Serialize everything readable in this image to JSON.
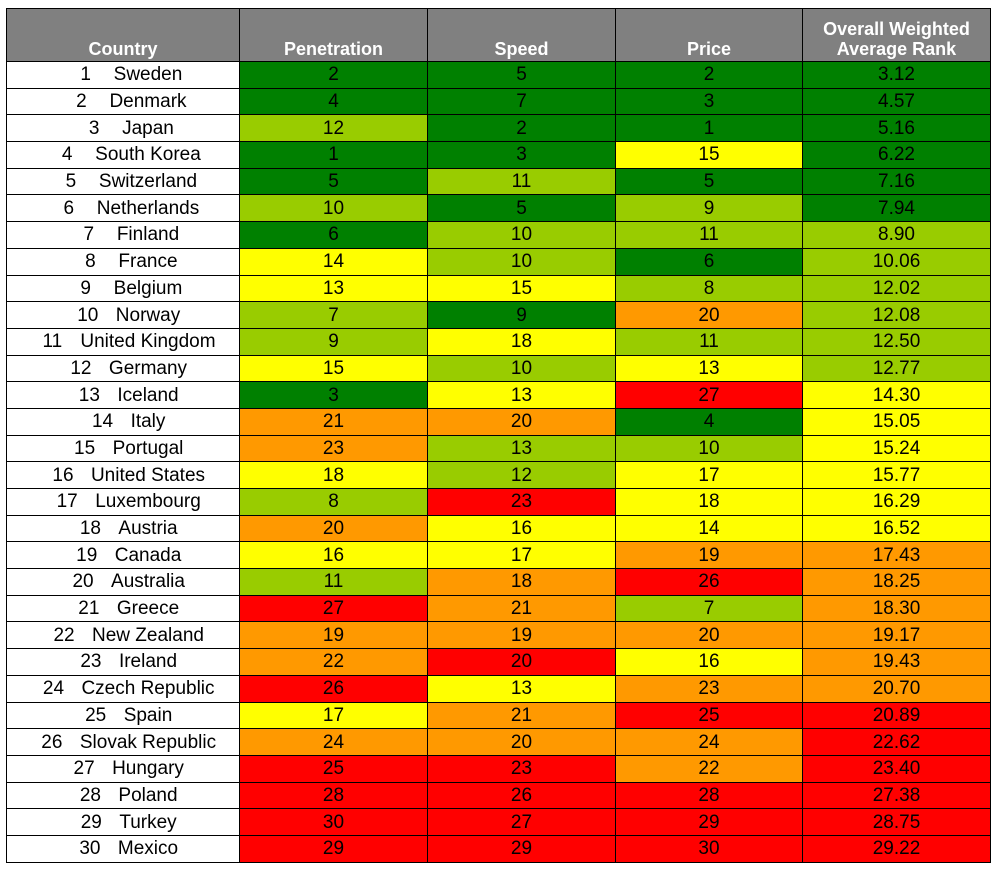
{
  "headers": {
    "country": "Country",
    "penetration": "Penetration",
    "speed": "Speed",
    "price": "Price",
    "overall_line1": "Overall Weighted",
    "overall_line2": "Average Rank"
  },
  "colors": {
    "dark_green": "#008000",
    "light_green": "#99cc00",
    "yellow": "#ffff00",
    "orange": "#ff9900",
    "red": "#ff0000",
    "header_bg": "#808080"
  },
  "rows": [
    {
      "rank": "1",
      "country": "Sweden",
      "penetration": "2",
      "speed": "5",
      "price": "2",
      "overall": "3.12",
      "colors": [
        "dg",
        "dg",
        "dg",
        "dg"
      ]
    },
    {
      "rank": "2",
      "country": "Denmark",
      "penetration": "4",
      "speed": "7",
      "price": "3",
      "overall": "4.57",
      "colors": [
        "dg",
        "dg",
        "dg",
        "dg"
      ]
    },
    {
      "rank": "3",
      "country": "Japan",
      "penetration": "12",
      "speed": "2",
      "price": "1",
      "overall": "5.16",
      "colors": [
        "lg",
        "dg",
        "dg",
        "dg"
      ]
    },
    {
      "rank": "4",
      "country": "South Korea",
      "penetration": "1",
      "speed": "3",
      "price": "15",
      "overall": "6.22",
      "colors": [
        "dg",
        "dg",
        "y",
        "dg"
      ]
    },
    {
      "rank": "5",
      "country": "Switzerland",
      "penetration": "5",
      "speed": "11",
      "price": "5",
      "overall": "7.16",
      "colors": [
        "dg",
        "lg",
        "dg",
        "dg"
      ]
    },
    {
      "rank": "6",
      "country": "Netherlands",
      "penetration": "10",
      "speed": "5",
      "price": "9",
      "overall": "7.94",
      "colors": [
        "lg",
        "dg",
        "lg",
        "dg"
      ]
    },
    {
      "rank": "7",
      "country": "Finland",
      "penetration": "6",
      "speed": "10",
      "price": "11",
      "overall": "8.90",
      "colors": [
        "dg",
        "lg",
        "lg",
        "lg"
      ]
    },
    {
      "rank": "8",
      "country": "France",
      "penetration": "14",
      "speed": "10",
      "price": "6",
      "overall": "10.06",
      "colors": [
        "y",
        "lg",
        "dg",
        "lg"
      ]
    },
    {
      "rank": "9",
      "country": "Belgium",
      "penetration": "13",
      "speed": "15",
      "price": "8",
      "overall": "12.02",
      "colors": [
        "y",
        "y",
        "lg",
        "lg"
      ]
    },
    {
      "rank": "10",
      "country": "Norway",
      "penetration": "7",
      "speed": "9",
      "price": "20",
      "overall": "12.08",
      "colors": [
        "lg",
        "dg",
        "o",
        "lg"
      ]
    },
    {
      "rank": "11",
      "country": "United Kingdom",
      "penetration": "9",
      "speed": "18",
      "price": "11",
      "overall": "12.50",
      "colors": [
        "lg",
        "y",
        "lg",
        "lg"
      ]
    },
    {
      "rank": "12",
      "country": "Germany",
      "penetration": "15",
      "speed": "10",
      "price": "13",
      "overall": "12.77",
      "colors": [
        "y",
        "lg",
        "y",
        "lg"
      ]
    },
    {
      "rank": "13",
      "country": "Iceland",
      "penetration": "3",
      "speed": "13",
      "price": "27",
      "overall": "14.30",
      "colors": [
        "dg",
        "y",
        "r",
        "y"
      ]
    },
    {
      "rank": "14",
      "country": "Italy",
      "penetration": "21",
      "speed": "20",
      "price": "4",
      "overall": "15.05",
      "colors": [
        "o",
        "o",
        "dg",
        "y"
      ]
    },
    {
      "rank": "15",
      "country": "Portugal",
      "penetration": "23",
      "speed": "13",
      "price": "10",
      "overall": "15.24",
      "colors": [
        "o",
        "lg",
        "lg",
        "y"
      ]
    },
    {
      "rank": "16",
      "country": "United States",
      "penetration": "18",
      "speed": "12",
      "price": "17",
      "overall": "15.77",
      "colors": [
        "y",
        "lg",
        "y",
        "y"
      ]
    },
    {
      "rank": "17",
      "country": "Luxembourg",
      "penetration": "8",
      "speed": "23",
      "price": "18",
      "overall": "16.29",
      "colors": [
        "lg",
        "r",
        "y",
        "y"
      ]
    },
    {
      "rank": "18",
      "country": "Austria",
      "penetration": "20",
      "speed": "16",
      "price": "14",
      "overall": "16.52",
      "colors": [
        "o",
        "y",
        "y",
        "y"
      ]
    },
    {
      "rank": "19",
      "country": "Canada",
      "penetration": "16",
      "speed": "17",
      "price": "19",
      "overall": "17.43",
      "colors": [
        "y",
        "y",
        "o",
        "o"
      ]
    },
    {
      "rank": "20",
      "country": "Australia",
      "penetration": "11",
      "speed": "18",
      "price": "26",
      "overall": "18.25",
      "colors": [
        "lg",
        "o",
        "r",
        "o"
      ]
    },
    {
      "rank": "21",
      "country": "Greece",
      "penetration": "27",
      "speed": "21",
      "price": "7",
      "overall": "18.30",
      "colors": [
        "r",
        "o",
        "lg",
        "o"
      ]
    },
    {
      "rank": "22",
      "country": "New Zealand",
      "penetration": "19",
      "speed": "19",
      "price": "20",
      "overall": "19.17",
      "colors": [
        "o",
        "o",
        "o",
        "o"
      ]
    },
    {
      "rank": "23",
      "country": "Ireland",
      "penetration": "22",
      "speed": "20",
      "price": "16",
      "overall": "19.43",
      "colors": [
        "o",
        "r",
        "y",
        "o"
      ]
    },
    {
      "rank": "24",
      "country": "Czech Republic",
      "penetration": "26",
      "speed": "13",
      "price": "23",
      "overall": "20.70",
      "colors": [
        "r",
        "y",
        "o",
        "o"
      ]
    },
    {
      "rank": "25",
      "country": "Spain",
      "penetration": "17",
      "speed": "21",
      "price": "25",
      "overall": "20.89",
      "colors": [
        "y",
        "o",
        "r",
        "r"
      ]
    },
    {
      "rank": "26",
      "country": "Slovak Republic",
      "penetration": "24",
      "speed": "20",
      "price": "24",
      "overall": "22.62",
      "colors": [
        "o",
        "o",
        "o",
        "r"
      ]
    },
    {
      "rank": "27",
      "country": "Hungary",
      "penetration": "25",
      "speed": "23",
      "price": "22",
      "overall": "23.40",
      "colors": [
        "r",
        "r",
        "o",
        "r"
      ]
    },
    {
      "rank": "28",
      "country": "Poland",
      "penetration": "28",
      "speed": "26",
      "price": "28",
      "overall": "27.38",
      "colors": [
        "r",
        "r",
        "r",
        "r"
      ]
    },
    {
      "rank": "29",
      "country": "Turkey",
      "penetration": "30",
      "speed": "27",
      "price": "29",
      "overall": "28.75",
      "colors": [
        "r",
        "r",
        "r",
        "r"
      ]
    },
    {
      "rank": "30",
      "country": "Mexico",
      "penetration": "29",
      "speed": "29",
      "price": "30",
      "overall": "29.22",
      "colors": [
        "r",
        "r",
        "r",
        "r"
      ]
    }
  ]
}
